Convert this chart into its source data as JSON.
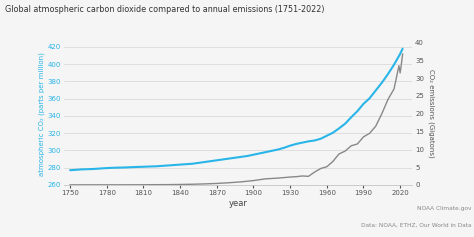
{
  "title": "Global atmospheric carbon dioxide compared to annual emissions (1751-2022)",
  "xlabel": "year",
  "ylabel_left": "atmospheric CO₂ (parts per million)",
  "ylabel_right": "CO₂ emissions (Gigatons)",
  "background_color": "#f5f5f5",
  "left_color": "#29b5e8",
  "right_color": "#888888",
  "ylim_left": [
    260,
    425
  ],
  "ylim_right": [
    0,
    40
  ],
  "yticks_left": [
    260,
    280,
    300,
    320,
    340,
    360,
    380,
    400,
    420
  ],
  "yticks_right": [
    0,
    5,
    10,
    15,
    20,
    25,
    30,
    35,
    40
  ],
  "xticks": [
    1750,
    1780,
    1810,
    1840,
    1870,
    1900,
    1930,
    1960,
    1990,
    2020
  ],
  "xlim": [
    1745,
    2030
  ],
  "source_text": "NOAA Climate.gov\nData: NOAA, ETHZ, Our World in Data",
  "co2_atm": [
    [
      1750,
      277.0
    ],
    [
      1755,
      277.5
    ],
    [
      1760,
      278.0
    ],
    [
      1765,
      278.2
    ],
    [
      1770,
      278.5
    ],
    [
      1775,
      279.0
    ],
    [
      1780,
      279.5
    ],
    [
      1785,
      279.8
    ],
    [
      1790,
      280.0
    ],
    [
      1795,
      280.2
    ],
    [
      1800,
      280.5
    ],
    [
      1805,
      280.8
    ],
    [
      1810,
      281.0
    ],
    [
      1815,
      281.3
    ],
    [
      1820,
      281.5
    ],
    [
      1825,
      282.0
    ],
    [
      1830,
      282.5
    ],
    [
      1835,
      283.0
    ],
    [
      1840,
      283.5
    ],
    [
      1845,
      284.0
    ],
    [
      1850,
      284.5
    ],
    [
      1855,
      285.5
    ],
    [
      1860,
      286.5
    ],
    [
      1865,
      287.5
    ],
    [
      1870,
      288.5
    ],
    [
      1875,
      289.5
    ],
    [
      1880,
      290.5
    ],
    [
      1885,
      291.5
    ],
    [
      1890,
      292.5
    ],
    [
      1895,
      293.5
    ],
    [
      1900,
      295.0
    ],
    [
      1905,
      296.5
    ],
    [
      1910,
      298.0
    ],
    [
      1915,
      299.5
    ],
    [
      1920,
      301.0
    ],
    [
      1925,
      303.0
    ],
    [
      1930,
      305.5
    ],
    [
      1935,
      307.5
    ],
    [
      1940,
      309.0
    ],
    [
      1945,
      310.5
    ],
    [
      1950,
      311.5
    ],
    [
      1955,
      313.5
    ],
    [
      1960,
      317.0
    ],
    [
      1965,
      320.5
    ],
    [
      1970,
      325.5
    ],
    [
      1975,
      331.0
    ],
    [
      1980,
      338.5
    ],
    [
      1985,
      345.5
    ],
    [
      1990,
      354.0
    ],
    [
      1995,
      360.5
    ],
    [
      2000,
      369.5
    ],
    [
      2005,
      378.5
    ],
    [
      2010,
      388.5
    ],
    [
      2015,
      399.5
    ],
    [
      2020,
      412.0
    ],
    [
      2022,
      418.0
    ]
  ],
  "co2_emissions": [
    [
      1750,
      0.003
    ],
    [
      1760,
      0.005
    ],
    [
      1770,
      0.007
    ],
    [
      1780,
      0.01
    ],
    [
      1790,
      0.015
    ],
    [
      1800,
      0.02
    ],
    [
      1810,
      0.03
    ],
    [
      1820,
      0.05
    ],
    [
      1830,
      0.07
    ],
    [
      1840,
      0.11
    ],
    [
      1850,
      0.17
    ],
    [
      1860,
      0.27
    ],
    [
      1870,
      0.4
    ],
    [
      1880,
      0.6
    ],
    [
      1890,
      0.85
    ],
    [
      1900,
      1.2
    ],
    [
      1910,
      1.7
    ],
    [
      1920,
      1.9
    ],
    [
      1930,
      2.2
    ],
    [
      1935,
      2.3
    ],
    [
      1940,
      2.5
    ],
    [
      1945,
      2.4
    ],
    [
      1950,
      3.6
    ],
    [
      1955,
      4.6
    ],
    [
      1960,
      5.1
    ],
    [
      1965,
      6.6
    ],
    [
      1970,
      8.7
    ],
    [
      1975,
      9.5
    ],
    [
      1980,
      11.0
    ],
    [
      1985,
      11.5
    ],
    [
      1990,
      13.5
    ],
    [
      1995,
      14.5
    ],
    [
      2000,
      16.5
    ],
    [
      2005,
      20.0
    ],
    [
      2010,
      24.0
    ],
    [
      2015,
      27.0
    ],
    [
      2019,
      33.5
    ],
    [
      2020,
      31.5
    ],
    [
      2021,
      34.0
    ],
    [
      2022,
      36.8
    ]
  ]
}
